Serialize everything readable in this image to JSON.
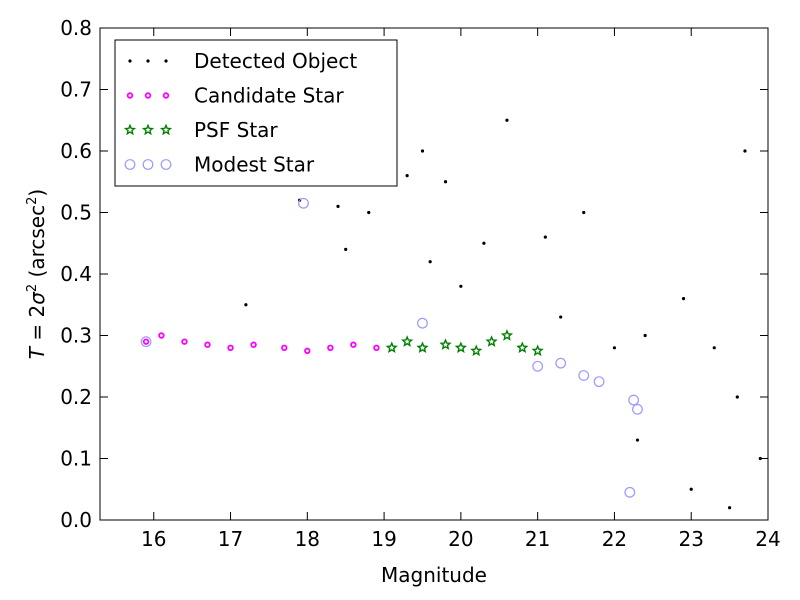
{
  "chart_data": {
    "type": "scatter",
    "title": "",
    "xlabel": "Magnitude",
    "ylabel_parts": {
      "lhs": "T",
      "eq": " = 2",
      "sigma": "σ",
      "sup": "2",
      "unit_open": " (arcsec",
      "unit_close": ")"
    },
    "xlim": [
      15.3,
      24.0
    ],
    "ylim": [
      0.0,
      0.8
    ],
    "xticks": [
      16,
      17,
      18,
      19,
      20,
      21,
      22,
      23,
      24
    ],
    "yticks": [
      0.0,
      0.1,
      0.2,
      0.3,
      0.4,
      0.5,
      0.6,
      0.7,
      0.8
    ],
    "xtick_labels": [
      "16",
      "17",
      "18",
      "19",
      "20",
      "21",
      "22",
      "23",
      "24"
    ],
    "ytick_labels": [
      "0.0",
      "0.1",
      "0.2",
      "0.3",
      "0.4",
      "0.5",
      "0.6",
      "0.7",
      "0.8"
    ],
    "grid": false,
    "legend_position": "top-left",
    "series": [
      {
        "name": "Detected Object",
        "marker": "dot",
        "color": "#000000",
        "points": [
          [
            17.2,
            0.35
          ],
          [
            17.9,
            0.52
          ],
          [
            18.4,
            0.51
          ],
          [
            18.5,
            0.44
          ],
          [
            18.8,
            0.5
          ],
          [
            19.3,
            0.56
          ],
          [
            19.5,
            0.6
          ],
          [
            19.6,
            0.42
          ],
          [
            19.8,
            0.55
          ],
          [
            20.0,
            0.38
          ],
          [
            20.3,
            0.45
          ],
          [
            20.6,
            0.65
          ],
          [
            21.1,
            0.46
          ],
          [
            21.3,
            0.33
          ],
          [
            21.6,
            0.5
          ],
          [
            22.0,
            0.28
          ],
          [
            22.4,
            0.3
          ],
          [
            22.9,
            0.36
          ],
          [
            23.3,
            0.28
          ],
          [
            23.6,
            0.2
          ],
          [
            22.3,
            0.13
          ],
          [
            23.0,
            0.05
          ],
          [
            23.5,
            0.02
          ],
          [
            23.9,
            0.1
          ],
          [
            23.7,
            0.6
          ]
        ]
      },
      {
        "name": "Candidate Star",
        "marker": "circle",
        "color": "#ff00ff",
        "points": [
          [
            15.9,
            0.29
          ],
          [
            16.1,
            0.3
          ],
          [
            16.4,
            0.29
          ],
          [
            16.7,
            0.285
          ],
          [
            17.0,
            0.28
          ],
          [
            17.3,
            0.285
          ],
          [
            17.7,
            0.28
          ],
          [
            18.0,
            0.275
          ],
          [
            18.3,
            0.28
          ],
          [
            18.6,
            0.285
          ],
          [
            18.9,
            0.28
          ]
        ]
      },
      {
        "name": "PSF Star",
        "marker": "star",
        "color": "#008000",
        "points": [
          [
            19.1,
            0.28
          ],
          [
            19.3,
            0.29
          ],
          [
            19.5,
            0.28
          ],
          [
            19.8,
            0.285
          ],
          [
            20.0,
            0.28
          ],
          [
            20.2,
            0.275
          ],
          [
            20.4,
            0.29
          ],
          [
            20.6,
            0.3
          ],
          [
            20.8,
            0.28
          ],
          [
            21.0,
            0.275
          ]
        ]
      },
      {
        "name": "Modest Star",
        "marker": "open-circle",
        "color": "#9999ff",
        "points": [
          [
            15.9,
            0.29
          ],
          [
            17.95,
            0.515
          ],
          [
            19.5,
            0.32
          ],
          [
            21.0,
            0.25
          ],
          [
            21.3,
            0.255
          ],
          [
            21.6,
            0.235
          ],
          [
            21.8,
            0.225
          ],
          [
            22.25,
            0.195
          ],
          [
            22.3,
            0.18
          ],
          [
            22.2,
            0.045
          ]
        ]
      }
    ],
    "colors": {
      "detected": "#000000",
      "candidate": "#ff00ff",
      "psf": "#008000",
      "modest": "#9999ff"
    }
  }
}
